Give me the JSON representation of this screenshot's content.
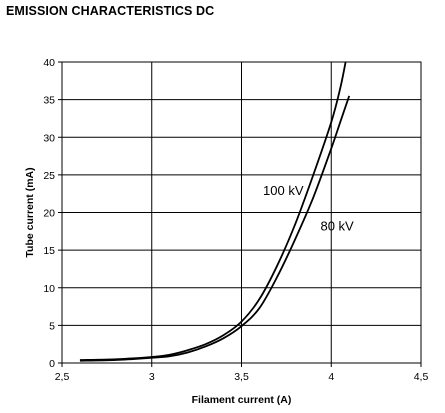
{
  "chart_data": {
    "type": "line",
    "title": "EMISSION CHARACTERISTICS DC",
    "xlabel": "Filament current (A)",
    "ylabel": "Tube current (mA)",
    "xlim": [
      2.5,
      4.5
    ],
    "ylim": [
      0,
      40
    ],
    "x_ticks": [
      2.5,
      3,
      3.5,
      4,
      4.5
    ],
    "x_tick_labels": [
      "2,5",
      "3",
      "3,5",
      "4",
      "4,5"
    ],
    "y_ticks": [
      0,
      5,
      10,
      15,
      20,
      25,
      30,
      35,
      40
    ],
    "y_tick_labels": [
      "0",
      "5",
      "10",
      "15",
      "20",
      "25",
      "30",
      "35",
      "40"
    ],
    "grid": true,
    "series": [
      {
        "name": "100 kV",
        "x": [
          2.6,
          2.8,
          3.0,
          3.1,
          3.2,
          3.3,
          3.4,
          3.5,
          3.6,
          3.7,
          3.8,
          3.9,
          4.0,
          4.05,
          4.08
        ],
        "y": [
          0.4,
          0.5,
          0.8,
          1.1,
          1.7,
          2.5,
          3.7,
          5.5,
          8.5,
          13.0,
          18.5,
          25.0,
          32.0,
          36.5,
          40.0
        ]
      },
      {
        "name": "80 kV",
        "x": [
          2.6,
          2.8,
          3.0,
          3.1,
          3.2,
          3.3,
          3.4,
          3.5,
          3.6,
          3.7,
          3.8,
          3.9,
          4.0,
          4.05,
          4.1
        ],
        "y": [
          0.3,
          0.4,
          0.7,
          0.9,
          1.4,
          2.2,
          3.3,
          4.9,
          7.3,
          11.5,
          16.5,
          22.0,
          28.5,
          32.0,
          35.5
        ]
      }
    ],
    "annotations": [
      {
        "text": "100 kV",
        "x": 3.62,
        "y": 22.3
      },
      {
        "text": "80 kV",
        "x": 3.94,
        "y": 17.6
      }
    ]
  }
}
